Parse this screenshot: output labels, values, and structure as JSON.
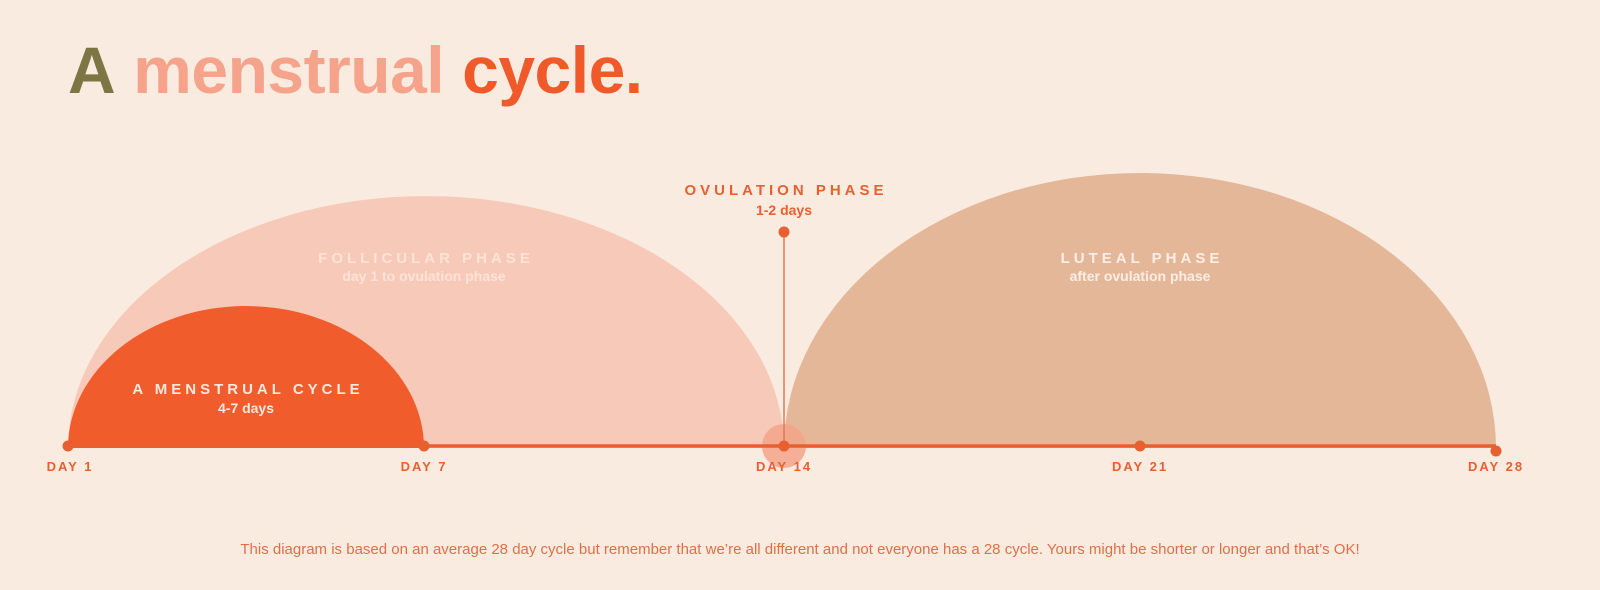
{
  "title": {
    "word_1": "A",
    "word_2": "menstrual",
    "word_3": "cycle."
  },
  "phases": {
    "menstrual": {
      "title": "A MENSTRUAL CYCLE",
      "subtitle": "4-7 days",
      "start_day": 1,
      "end_day": 7
    },
    "follicular": {
      "title": "FOLLICULAR PHASE",
      "subtitle": "day 1 to ovulation phase",
      "start_day": 1,
      "end_day": 14
    },
    "ovulation": {
      "title": "OVULATION PHASE",
      "subtitle": "1-2 days",
      "day": 14
    },
    "luteal": {
      "title": "LUTEAL PHASE",
      "subtitle": "after ovulation phase",
      "start_day": 14,
      "end_day": 28
    }
  },
  "timeline": {
    "days": [
      "DAY 1",
      "DAY 7",
      "DAY 14",
      "DAY 21",
      "DAY 28"
    ]
  },
  "footnote": "This diagram is based on an average 28 day cycle but remember that we’re all different and not everyone has a 28 cycle. Yours might be shorter or longer and that’s OK!",
  "colors": {
    "background": "#faebe0",
    "title_a": "#7d7543",
    "title_menstrual": "#f5a38a",
    "title_cycle": "#f05a2b",
    "menstrual_fill": "#f15c2c",
    "follicular_fill": "#f7c9b8",
    "luteal_fill": "#e5b799",
    "timeline": "#e8602f",
    "ovulation_text": "#e8602f",
    "follicular_text": "#fbe3d8",
    "luteal_text": "#fbeee6",
    "menstrual_text": "#fde9df"
  }
}
